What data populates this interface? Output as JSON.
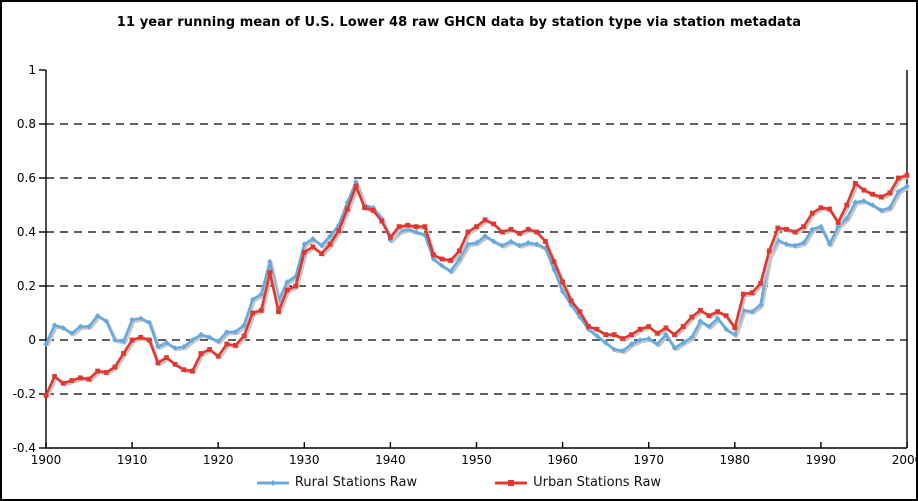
{
  "chart_data": {
    "type": "line",
    "title": "11 year running mean of U.S. Lower 48 raw GHCN data by station type via station metadata",
    "xlabel": "",
    "ylabel": "",
    "xlim": [
      1900,
      2000
    ],
    "ylim": [
      -0.4,
      1
    ],
    "grid": "dashed-horizontal",
    "grid_values": [
      0.8,
      0.6,
      0.4,
      0.2,
      0,
      -0.2
    ],
    "legend_position": "bottom-center",
    "axis_color": "#000000",
    "shadow_color": "#c6c6c6",
    "xticks": [
      1900,
      1910,
      1920,
      1930,
      1940,
      1950,
      1960,
      1970,
      1980,
      1990,
      2000
    ],
    "xtick_labels": [
      "1900",
      "1910",
      "1920",
      "1930",
      "1940",
      "1950",
      "1960",
      "1970",
      "1980",
      "1990",
      "2000"
    ],
    "yticks": [
      1,
      0.8,
      0.6,
      0.4,
      0.2,
      0,
      -0.2,
      -0.4
    ],
    "ytick_labels": [
      "1",
      "0.8",
      "0.6",
      "0.4",
      "0.2",
      "0",
      "-0.2",
      "-0.4"
    ],
    "x": [
      1900,
      1901,
      1902,
      1903,
      1904,
      1905,
      1906,
      1907,
      1908,
      1909,
      1910,
      1911,
      1912,
      1913,
      1914,
      1915,
      1916,
      1917,
      1918,
      1919,
      1920,
      1921,
      1922,
      1923,
      1924,
      1925,
      1926,
      1927,
      1928,
      1929,
      1930,
      1931,
      1932,
      1933,
      1934,
      1935,
      1936,
      1937,
      1938,
      1939,
      1940,
      1941,
      1942,
      1943,
      1944,
      1945,
      1946,
      1947,
      1948,
      1949,
      1950,
      1951,
      1952,
      1953,
      1954,
      1955,
      1956,
      1957,
      1958,
      1959,
      1960,
      1961,
      1962,
      1963,
      1964,
      1965,
      1966,
      1967,
      1968,
      1969,
      1970,
      1971,
      1972,
      1973,
      1974,
      1975,
      1976,
      1977,
      1978,
      1979,
      1980,
      1981,
      1982,
      1983,
      1984,
      1985,
      1986,
      1987,
      1988,
      1989,
      1990,
      1991,
      1992,
      1993,
      1994,
      1995,
      1996,
      1997,
      1998,
      1999,
      2000
    ],
    "series": [
      {
        "name": "Rural Stations Raw",
        "color": "#66A9E0",
        "marker": "diamond",
        "values": [
          -0.015,
          0.055,
          0.045,
          0.025,
          0.05,
          0.05,
          0.09,
          0.07,
          0,
          -0.005,
          0.075,
          0.08,
          0.065,
          -0.025,
          -0.01,
          -0.03,
          -0.025,
          0,
          0.02,
          0.01,
          -0.005,
          0.03,
          0.03,
          0.055,
          0.15,
          0.17,
          0.29,
          0.145,
          0.215,
          0.235,
          0.355,
          0.375,
          0.35,
          0.385,
          0.425,
          0.51,
          0.585,
          0.5,
          0.49,
          0.45,
          0.37,
          0.4,
          0.41,
          0.4,
          0.39,
          0.3,
          0.275,
          0.255,
          0.3,
          0.355,
          0.36,
          0.385,
          0.365,
          0.35,
          0.365,
          0.35,
          0.36,
          0.355,
          0.34,
          0.26,
          0.18,
          0.13,
          0.085,
          0.04,
          0.015,
          -0.01,
          -0.035,
          -0.04,
          -0.015,
          0,
          0.005,
          -0.015,
          0.02,
          -0.03,
          -0.01,
          0.01,
          0.07,
          0.05,
          0.08,
          0.04,
          0.02,
          0.11,
          0.105,
          0.13,
          0.31,
          0.37,
          0.355,
          0.35,
          0.36,
          0.41,
          0.42,
          0.355,
          0.42,
          0.45,
          0.51,
          0.515,
          0.5,
          0.48,
          0.49,
          0.55,
          0.57
        ]
      },
      {
        "name": "Urban Stations Raw",
        "color": "#E03830",
        "marker": "square",
        "values": [
          -0.205,
          -0.135,
          -0.16,
          -0.15,
          -0.14,
          -0.145,
          -0.115,
          -0.12,
          -0.1,
          -0.05,
          0,
          0.01,
          0,
          -0.085,
          -0.065,
          -0.09,
          -0.11,
          -0.115,
          -0.05,
          -0.035,
          -0.06,
          -0.015,
          -0.02,
          0.015,
          0.1,
          0.11,
          0.25,
          0.105,
          0.185,
          0.2,
          0.325,
          0.345,
          0.32,
          0.355,
          0.405,
          0.485,
          0.57,
          0.49,
          0.48,
          0.44,
          0.38,
          0.42,
          0.425,
          0.42,
          0.42,
          0.315,
          0.3,
          0.295,
          0.33,
          0.4,
          0.42,
          0.445,
          0.43,
          0.4,
          0.41,
          0.395,
          0.41,
          0.4,
          0.365,
          0.29,
          0.215,
          0.145,
          0.105,
          0.05,
          0.04,
          0.02,
          0.02,
          0.005,
          0.02,
          0.04,
          0.05,
          0.025,
          0.045,
          0.02,
          0.05,
          0.085,
          0.11,
          0.09,
          0.105,
          0.09,
          0.045,
          0.17,
          0.175,
          0.21,
          0.33,
          0.415,
          0.41,
          0.4,
          0.42,
          0.47,
          0.49,
          0.485,
          0.435,
          0.5,
          0.58,
          0.555,
          0.54,
          0.53,
          0.545,
          0.6,
          0.61
        ]
      }
    ]
  }
}
